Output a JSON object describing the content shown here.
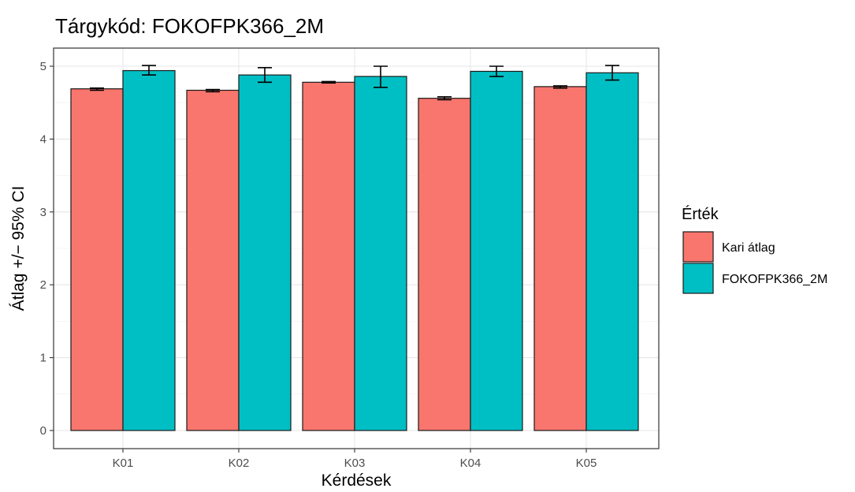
{
  "chart_data": {
    "type": "bar",
    "title": "Tárgykód:  FOKOFPK366_2M",
    "xlabel": "Kérdések",
    "ylabel": "Átlag +/− 95% CI",
    "categories": [
      "K01",
      "K02",
      "K03",
      "K04",
      "K05"
    ],
    "ylim": [
      0,
      5.15
    ],
    "yticks": [
      0,
      1,
      2,
      3,
      4,
      5
    ],
    "grid": true,
    "legend": {
      "title": "Érték",
      "position": "right"
    },
    "series": [
      {
        "name": "Kari átlag",
        "color": "#f8766d",
        "values": [
          4.69,
          4.67,
          4.78,
          4.56,
          4.72
        ],
        "ci_low": [
          4.67,
          4.65,
          4.77,
          4.54,
          4.7
        ],
        "ci_high": [
          4.7,
          4.68,
          4.79,
          4.58,
          4.73
        ]
      },
      {
        "name": "FOKOFPK366_2M",
        "color": "#00bfc4",
        "values": [
          4.94,
          4.88,
          4.86,
          4.93,
          4.91
        ],
        "ci_low": [
          4.88,
          4.78,
          4.71,
          4.86,
          4.81
        ],
        "ci_high": [
          5.01,
          4.98,
          5.0,
          5.0,
          5.01
        ]
      }
    ]
  }
}
